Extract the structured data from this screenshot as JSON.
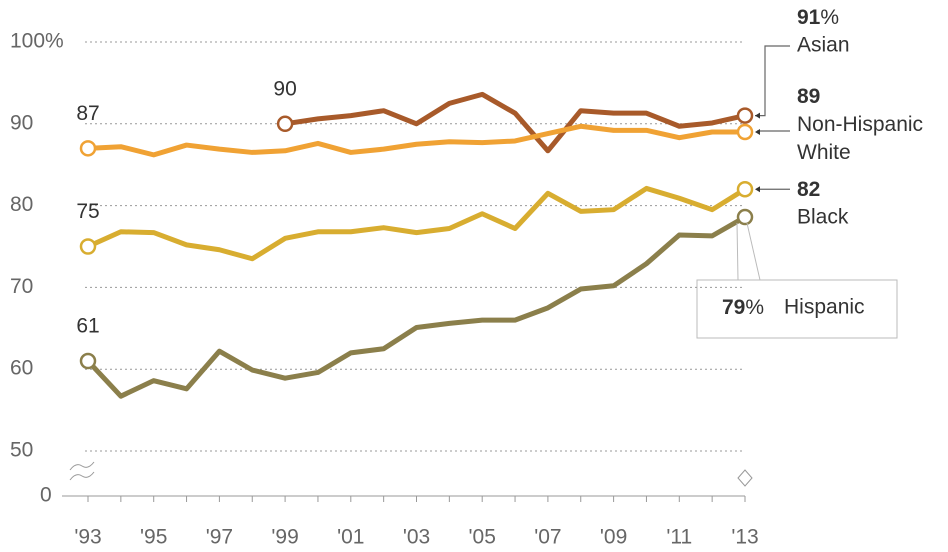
{
  "chart_data": {
    "type": "line",
    "categories": [
      "'93",
      null,
      "'95",
      null,
      "'97",
      null,
      "'99",
      null,
      "'01",
      null,
      "'03",
      null,
      "'05",
      null,
      "'07",
      null,
      "'09",
      null,
      "'11",
      null,
      "'13"
    ],
    "ylim": [
      50,
      100
    ],
    "yticks": [
      50,
      60,
      70,
      80,
      90,
      {
        "value": 100,
        "label": "100%"
      }
    ],
    "axis_break_tick": 0,
    "grid": true,
    "series": [
      {
        "name": "Asian",
        "color": "#a85a2a",
        "values": [
          null,
          null,
          null,
          null,
          null,
          null,
          90,
          90.6,
          91,
          91.6,
          90,
          92.5,
          93.6,
          91.3,
          86.7,
          91.6,
          91.3,
          91.3,
          89.7,
          90.1,
          91
        ],
        "value_labels": [
          null,
          null,
          null,
          null,
          null,
          null,
          "90",
          null,
          null,
          null,
          null,
          null,
          null,
          null,
          null,
          null,
          null,
          null,
          null,
          null,
          "91%"
        ]
      },
      {
        "name": "Non-Hispanic White",
        "color": "#f0a234",
        "values": [
          87,
          87.2,
          86.2,
          87.4,
          86.9,
          86.5,
          86.7,
          87.6,
          86.5,
          86.9,
          87.5,
          87.8,
          87.7,
          87.9,
          88.8,
          89.7,
          89.2,
          89.2,
          88.3,
          89,
          89
        ],
        "value_labels": [
          "87",
          null,
          null,
          null,
          null,
          null,
          null,
          null,
          null,
          null,
          null,
          null,
          null,
          null,
          null,
          null,
          null,
          null,
          null,
          null,
          "89"
        ]
      },
      {
        "name": "Black",
        "color": "#d8ad30",
        "values": [
          75,
          76.8,
          76.7,
          75.2,
          74.6,
          73.5,
          76,
          76.8,
          76.8,
          77.3,
          76.7,
          77.2,
          79,
          77.2,
          81.5,
          79.3,
          79.5,
          82.1,
          80.9,
          79.5,
          82
        ],
        "value_labels": [
          "75",
          null,
          null,
          null,
          null,
          null,
          null,
          null,
          null,
          null,
          null,
          null,
          null,
          null,
          null,
          null,
          null,
          null,
          null,
          null,
          "82"
        ]
      },
      {
        "name": "Hispanic",
        "color": "#8b7f4b",
        "values": [
          61,
          56.7,
          58.6,
          57.6,
          62.2,
          59.9,
          58.9,
          59.6,
          62,
          62.5,
          65.1,
          65.6,
          66,
          66,
          67.5,
          69.8,
          70.2,
          72.9,
          76.4,
          76.3,
          78.6
        ],
        "value_labels": [
          "61",
          null,
          null,
          null,
          null,
          null,
          null,
          null,
          null,
          null,
          null,
          null,
          null,
          null,
          null,
          null,
          null,
          null,
          null,
          null,
          "79%"
        ]
      }
    ]
  }
}
